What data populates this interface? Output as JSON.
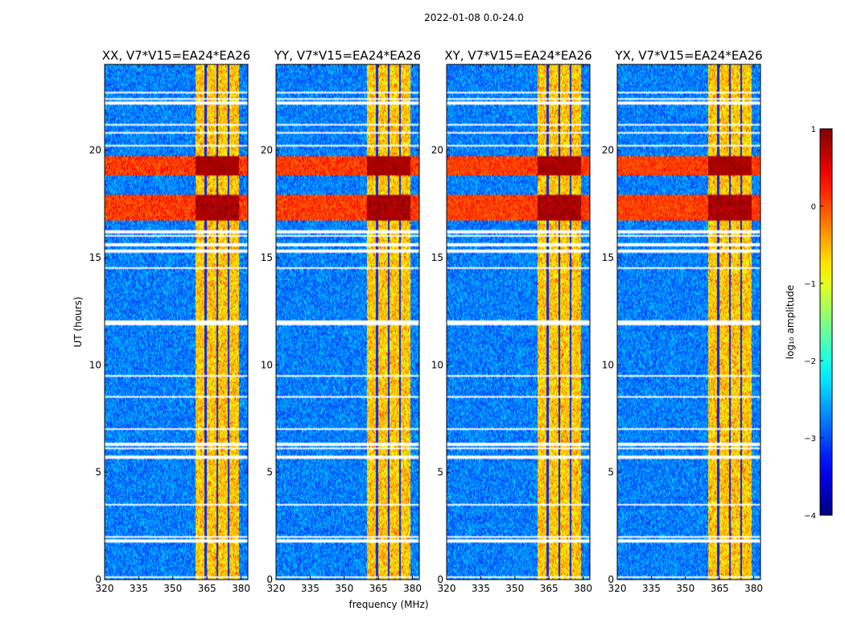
{
  "suptitle": "2022-01-08 0.0-24.0",
  "xlabel": "frequency (MHz)",
  "ylabel": "UT (hours)",
  "colorbar": {
    "label": "log₁₀ amplitude",
    "range": [
      -4,
      1
    ],
    "ticks": [
      "1",
      "0",
      "−1",
      "−2",
      "−3",
      "−4"
    ],
    "tick_values": [
      1,
      0,
      -1,
      -2,
      -3,
      -4
    ],
    "colormap": "jet"
  },
  "chart_data": {
    "type": "heatmap",
    "xlim": [
      320,
      383
    ],
    "ylim": [
      0,
      24
    ],
    "xticks": [
      320,
      335,
      350,
      365,
      380
    ],
    "yticks": [
      0,
      5,
      10,
      15,
      20
    ],
    "panels": [
      {
        "title": "XX, V7*V15=EA24*EA26",
        "rfi_strength": 1.0
      },
      {
        "title": "YY, V7*V15=EA24*EA26",
        "rfi_strength": 0.9
      },
      {
        "title": "XY, V7*V15=EA24*EA26",
        "rfi_strength": 0.85
      },
      {
        "title": "YX, V7*V15=EA24*EA26",
        "rfi_strength": 0.8
      }
    ],
    "rfi_band_mhz": [
      360,
      379
    ],
    "rfi_channel_edges_mhz": [
      364.5,
      369.5,
      374.5
    ],
    "strong_rfi_hours": [
      [
        16.7,
        17.9
      ],
      [
        18.8,
        19.7
      ]
    ],
    "flagged_hours": [
      0.1,
      1.8,
      2.0,
      3.5,
      5.7,
      6.1,
      6.3,
      7.0,
      8.5,
      9.5,
      11.9,
      12.0,
      14.5,
      15.3,
      15.6,
      16.0,
      16.2,
      20.2,
      20.8,
      21.2,
      22.2,
      22.4,
      22.7
    ]
  }
}
